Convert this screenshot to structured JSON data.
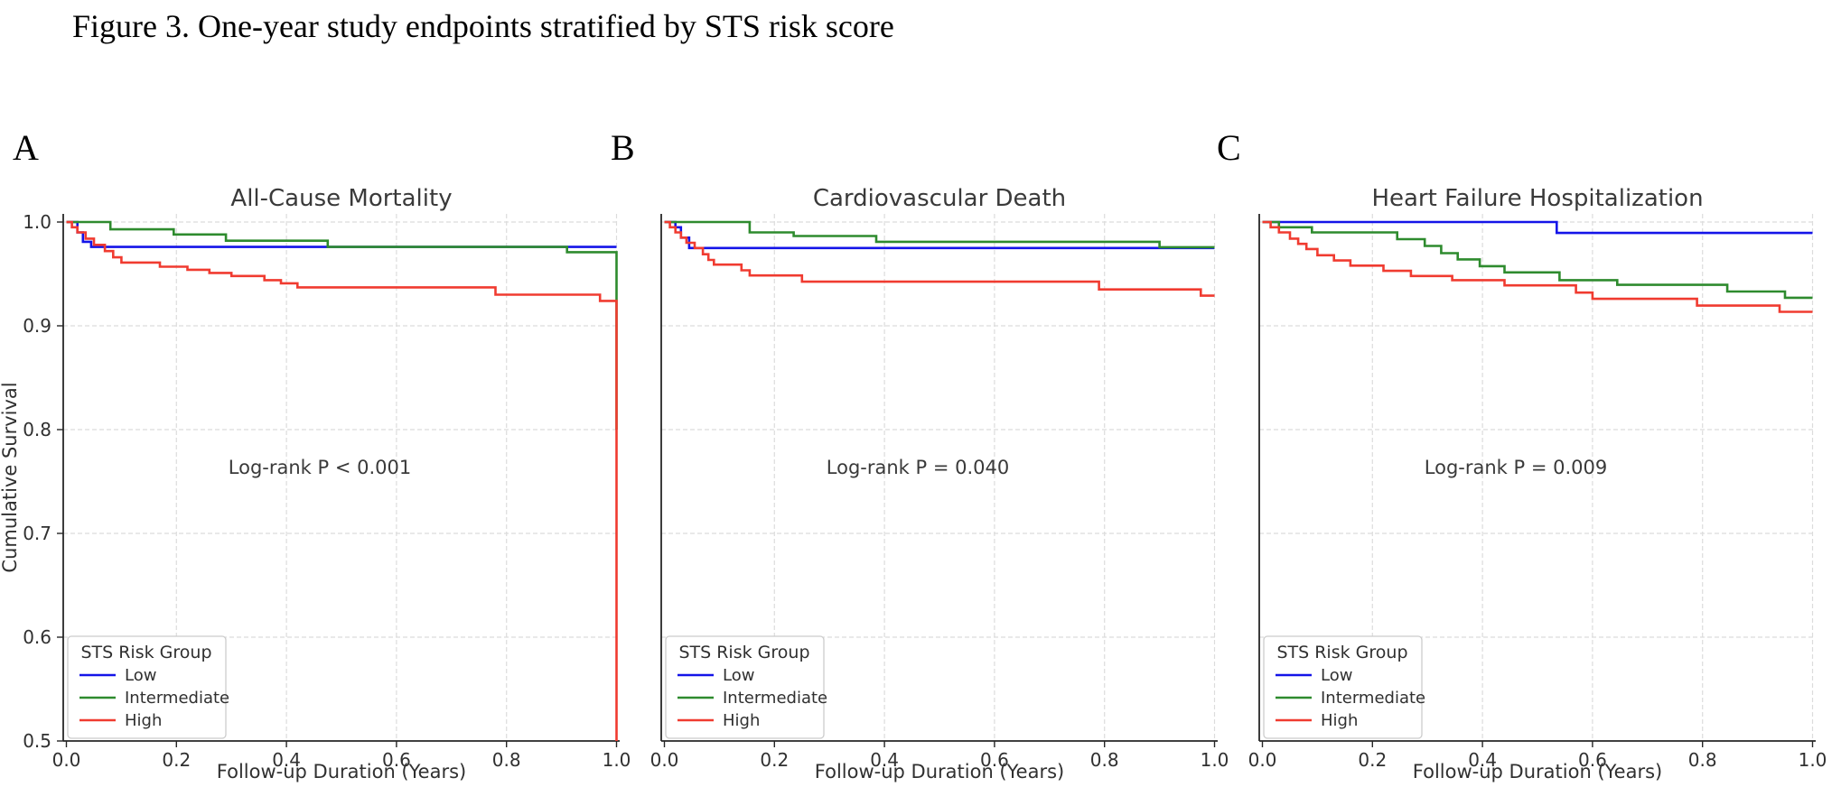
{
  "figure_title": "Figure 3. One-year study endpoints stratified by STS risk score",
  "colors": {
    "low": "#1414e8",
    "intermediate": "#2e8b2e",
    "high": "#f03b30",
    "grid": "#dcdcdc",
    "spine": "#262626",
    "text": "#303030",
    "legend_border": "#cccccc",
    "legend_bg": "#ffffff"
  },
  "legend": {
    "title": "STS Risk Group",
    "items": [
      {
        "label": "Low",
        "key": "low"
      },
      {
        "label": "Intermediate",
        "key": "intermediate"
      },
      {
        "label": "High",
        "key": "high"
      }
    ]
  },
  "axes": {
    "x_label": "Follow-up Duration (Years)",
    "y_label": "Cumulative Survival",
    "x_ticks": [
      "0.0",
      "0.2",
      "0.4",
      "0.6",
      "0.8",
      "1.0"
    ],
    "y_ticks": [
      "0.5",
      "0.6",
      "0.7",
      "0.8",
      "0.9",
      "1.0"
    ],
    "x_range": [
      0.0,
      1.0
    ],
    "y_range": [
      0.5,
      1.0
    ],
    "grid": "dashed"
  },
  "panels": [
    {
      "letter": "A"
    },
    {
      "letter": "B"
    },
    {
      "letter": "C"
    }
  ],
  "chart_data": {
    "type": "line",
    "subtype": "kaplan-meier-step",
    "x_axis_label": "Follow-up Duration (Years)",
    "y_axis_label": "Cumulative Survival",
    "x_ticks": [
      0.0,
      0.2,
      0.4,
      0.6,
      0.8,
      1.0
    ],
    "y_ticks": [
      0.5,
      0.6,
      0.7,
      0.8,
      0.9,
      1.0
    ],
    "ylim": [
      0.5,
      1.008
    ],
    "legend_position": "lower-left",
    "panels": [
      {
        "letter": "A",
        "title": "All-Cause Mortality",
        "p_label": "Log-rank P < 0.001",
        "series": [
          {
            "name": "Low",
            "key": "low",
            "points": [
              [
                0,
                1.0
              ],
              [
                0.02,
                0.99
              ],
              [
                0.03,
                0.981
              ],
              [
                0.045,
                0.976
              ],
              [
                1.0,
                0.976
              ]
            ]
          },
          {
            "name": "Intermediate",
            "key": "intermediate",
            "points": [
              [
                0,
                1.0
              ],
              [
                0.08,
                0.993
              ],
              [
                0.195,
                0.988
              ],
              [
                0.29,
                0.982
              ],
              [
                0.475,
                0.976
              ],
              [
                0.91,
                0.971
              ],
              [
                1.0,
                0.971
              ],
              [
                1.0,
                0.8
              ]
            ]
          },
          {
            "name": "High",
            "key": "high",
            "points": [
              [
                0,
                1.0
              ],
              [
                0.01,
                0.995
              ],
              [
                0.02,
                0.99
              ],
              [
                0.035,
                0.984
              ],
              [
                0.05,
                0.978
              ],
              [
                0.07,
                0.972
              ],
              [
                0.085,
                0.966
              ],
              [
                0.1,
                0.961
              ],
              [
                0.17,
                0.957
              ],
              [
                0.22,
                0.954
              ],
              [
                0.26,
                0.951
              ],
              [
                0.3,
                0.948
              ],
              [
                0.36,
                0.944
              ],
              [
                0.39,
                0.941
              ],
              [
                0.42,
                0.937
              ],
              [
                0.78,
                0.93
              ],
              [
                0.97,
                0.924
              ],
              [
                1.0,
                0.924
              ],
              [
                1.0,
                0.5
              ]
            ]
          }
        ]
      },
      {
        "letter": "B",
        "title": "Cardiovascular Death",
        "p_label": "Log-rank P = 0.040",
        "series": [
          {
            "name": "Low",
            "key": "low",
            "points": [
              [
                0,
                1.0
              ],
              [
                0.02,
                0.995
              ],
              [
                0.03,
                0.985
              ],
              [
                0.045,
                0.975
              ],
              [
                1.0,
                0.975
              ]
            ]
          },
          {
            "name": "Intermediate",
            "key": "intermediate",
            "points": [
              [
                0,
                1.0
              ],
              [
                0.155,
                0.99
              ],
              [
                0.235,
                0.9865
              ],
              [
                0.385,
                0.981
              ],
              [
                0.9,
                0.9757
              ],
              [
                1.0,
                0.9757
              ]
            ]
          },
          {
            "name": "High",
            "key": "high",
            "points": [
              [
                0,
                1.0
              ],
              [
                0.01,
                0.995
              ],
              [
                0.02,
                0.99
              ],
              [
                0.03,
                0.985
              ],
              [
                0.04,
                0.98
              ],
              [
                0.055,
                0.975
              ],
              [
                0.07,
                0.969
              ],
              [
                0.08,
                0.9635
              ],
              [
                0.09,
                0.959
              ],
              [
                0.14,
                0.9535
              ],
              [
                0.155,
                0.9485
              ],
              [
                0.25,
                0.9425
              ],
              [
                0.79,
                0.935
              ],
              [
                0.975,
                0.929
              ],
              [
                1.0,
                0.929
              ]
            ]
          }
        ]
      },
      {
        "letter": "C",
        "title": "Heart Failure Hospitalization",
        "p_label": "Log-rank P = 0.009",
        "series": [
          {
            "name": "Low",
            "key": "low",
            "points": [
              [
                0,
                1.0
              ],
              [
                0.535,
                0.9895
              ],
              [
                1.0,
                0.9895
              ]
            ]
          },
          {
            "name": "Intermediate",
            "key": "intermediate",
            "points": [
              [
                0,
                1.0
              ],
              [
                0.03,
                0.995
              ],
              [
                0.09,
                0.99
              ],
              [
                0.245,
                0.9835
              ],
              [
                0.295,
                0.977
              ],
              [
                0.325,
                0.97
              ],
              [
                0.355,
                0.964
              ],
              [
                0.395,
                0.9575
              ],
              [
                0.44,
                0.9515
              ],
              [
                0.54,
                0.944
              ],
              [
                0.645,
                0.9395
              ],
              [
                0.845,
                0.933
              ],
              [
                0.95,
                0.927
              ],
              [
                1.0,
                0.927
              ]
            ]
          },
          {
            "name": "High",
            "key": "high",
            "points": [
              [
                0,
                1.0
              ],
              [
                0.015,
                0.995
              ],
              [
                0.03,
                0.99
              ],
              [
                0.05,
                0.984
              ],
              [
                0.065,
                0.979
              ],
              [
                0.08,
                0.974
              ],
              [
                0.1,
                0.968
              ],
              [
                0.13,
                0.963
              ],
              [
                0.16,
                0.958
              ],
              [
                0.22,
                0.953
              ],
              [
                0.27,
                0.948
              ],
              [
                0.345,
                0.944
              ],
              [
                0.44,
                0.939
              ],
              [
                0.57,
                0.932
              ],
              [
                0.6,
                0.926
              ],
              [
                0.79,
                0.9195
              ],
              [
                0.94,
                0.9135
              ],
              [
                1.0,
                0.9135
              ]
            ]
          }
        ]
      }
    ]
  }
}
